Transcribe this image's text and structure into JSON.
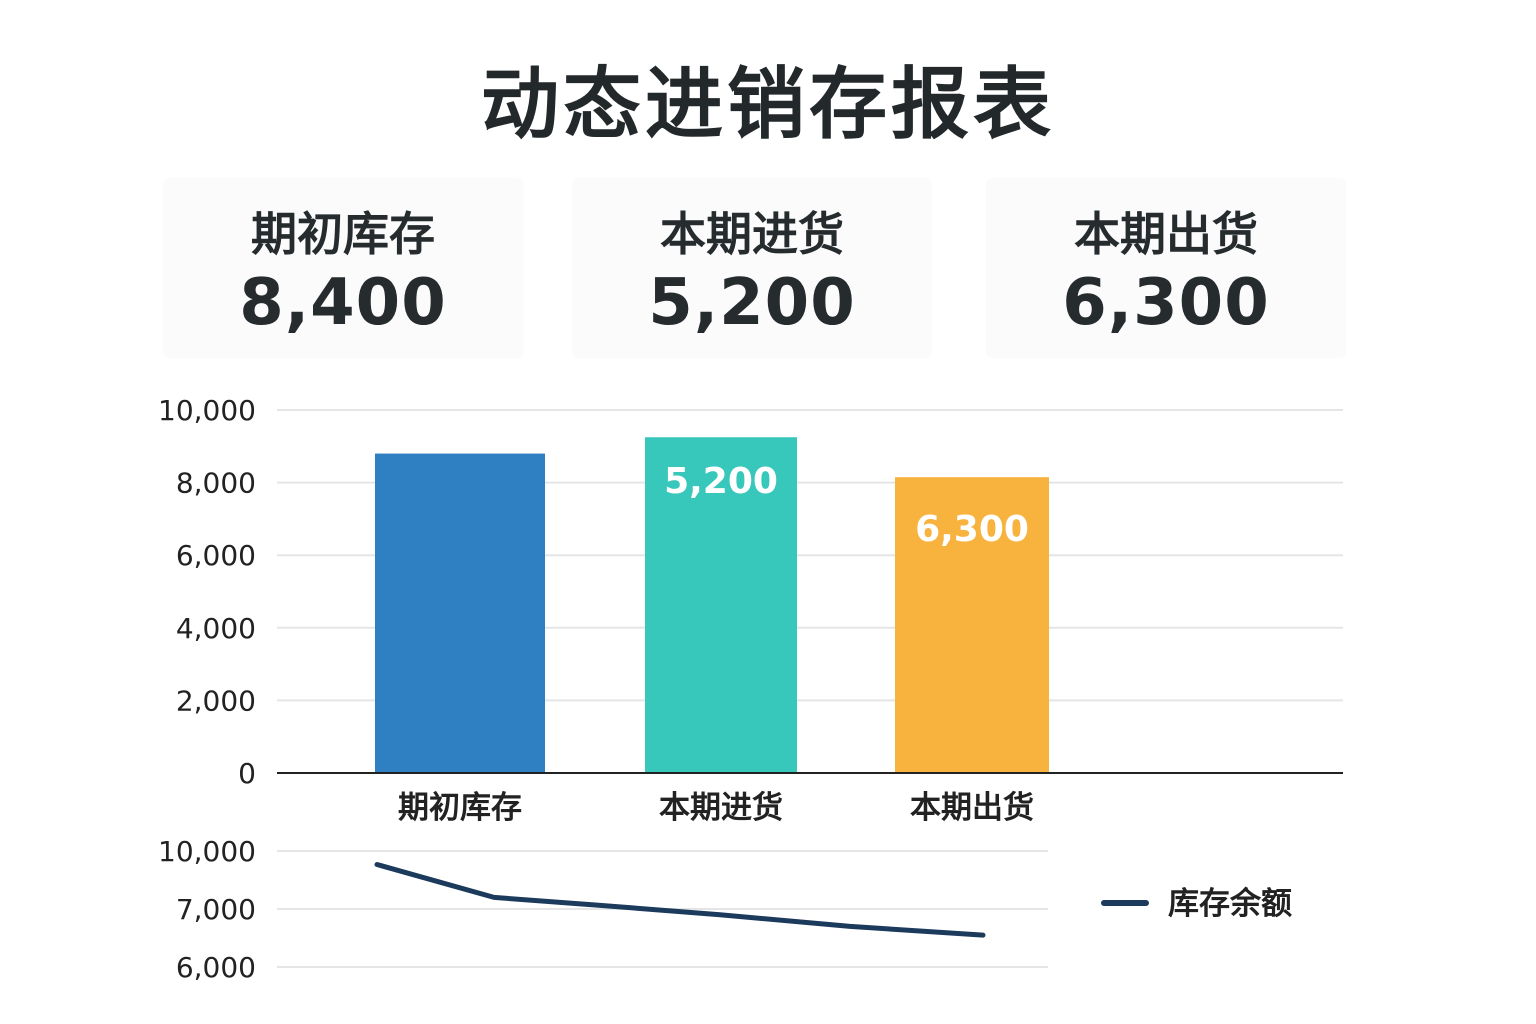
{
  "title": "动态进销存报表",
  "kpis": [
    {
      "label": "期初库存",
      "value": "8,400"
    },
    {
      "label": "本期进货",
      "value": "5,200"
    },
    {
      "label": "本期出货",
      "value": "6,300"
    }
  ],
  "chart_data": [
    {
      "type": "bar",
      "categories": [
        "期初库存",
        "本期进货",
        "本期出货"
      ],
      "values": [
        8800,
        9250,
        8150
      ],
      "data_labels": [
        "",
        "5,200",
        "6,300"
      ],
      "colors": [
        "#2f80c2",
        "#38c7bb",
        "#f8b23e"
      ],
      "ylim": [
        0,
        10000
      ],
      "yticks": [
        0,
        2000,
        4000,
        6000,
        8000,
        10000
      ],
      "ytick_labels": [
        "0",
        "2,000",
        "4,000",
        "6,000",
        "8,000",
        "10,000"
      ],
      "grid": true
    },
    {
      "type": "line",
      "series": [
        {
          "name": "库存余额",
          "values": [
            9300,
            7600,
            7200,
            6900,
            6700,
            6550
          ],
          "color": "#1c3a5c"
        }
      ],
      "x_positions": [
        0,
        1,
        2,
        3,
        4,
        5
      ],
      "yticks": [
        6000,
        7000,
        10000
      ],
      "ytick_labels": [
        "6,000",
        "7,000",
        "10,000"
      ],
      "legend": "right",
      "grid": true
    }
  ]
}
